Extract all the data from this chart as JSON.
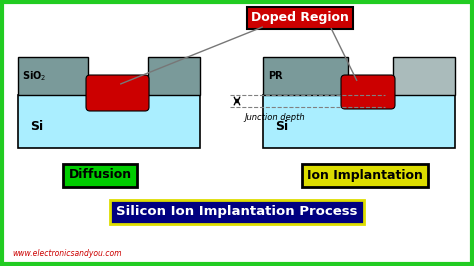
{
  "bg_color": "#ffffff",
  "border_color": "#22cc22",
  "title": "Silicon Ion Implantation Process",
  "title_bg": "#000080",
  "title_fg": "#ffffff",
  "title_border": "#dddd00",
  "doped_label": "Doped Region",
  "doped_bg": "#cc0000",
  "doped_fg": "#ffffff",
  "diffusion_label": "Diffusion",
  "diffusion_bg": "#00cc00",
  "diffusion_fg": "#000000",
  "diffusion_border": "#000000",
  "ion_label": "Ion Implantation",
  "ion_bg": "#dddd00",
  "ion_fg": "#000000",
  "ion_border": "#000000",
  "junction_label": "Junction depth",
  "si_color": "#aaeeff",
  "sio2_color": "#7a9a9a",
  "pr_color_left": "#7a9a9a",
  "pr_color_right": "#aabbbb",
  "doped_region_color": "#cc0000",
  "website": "www.electronicsandyou.com",
  "website_color": "#cc0000",
  "line_color": "#777777"
}
